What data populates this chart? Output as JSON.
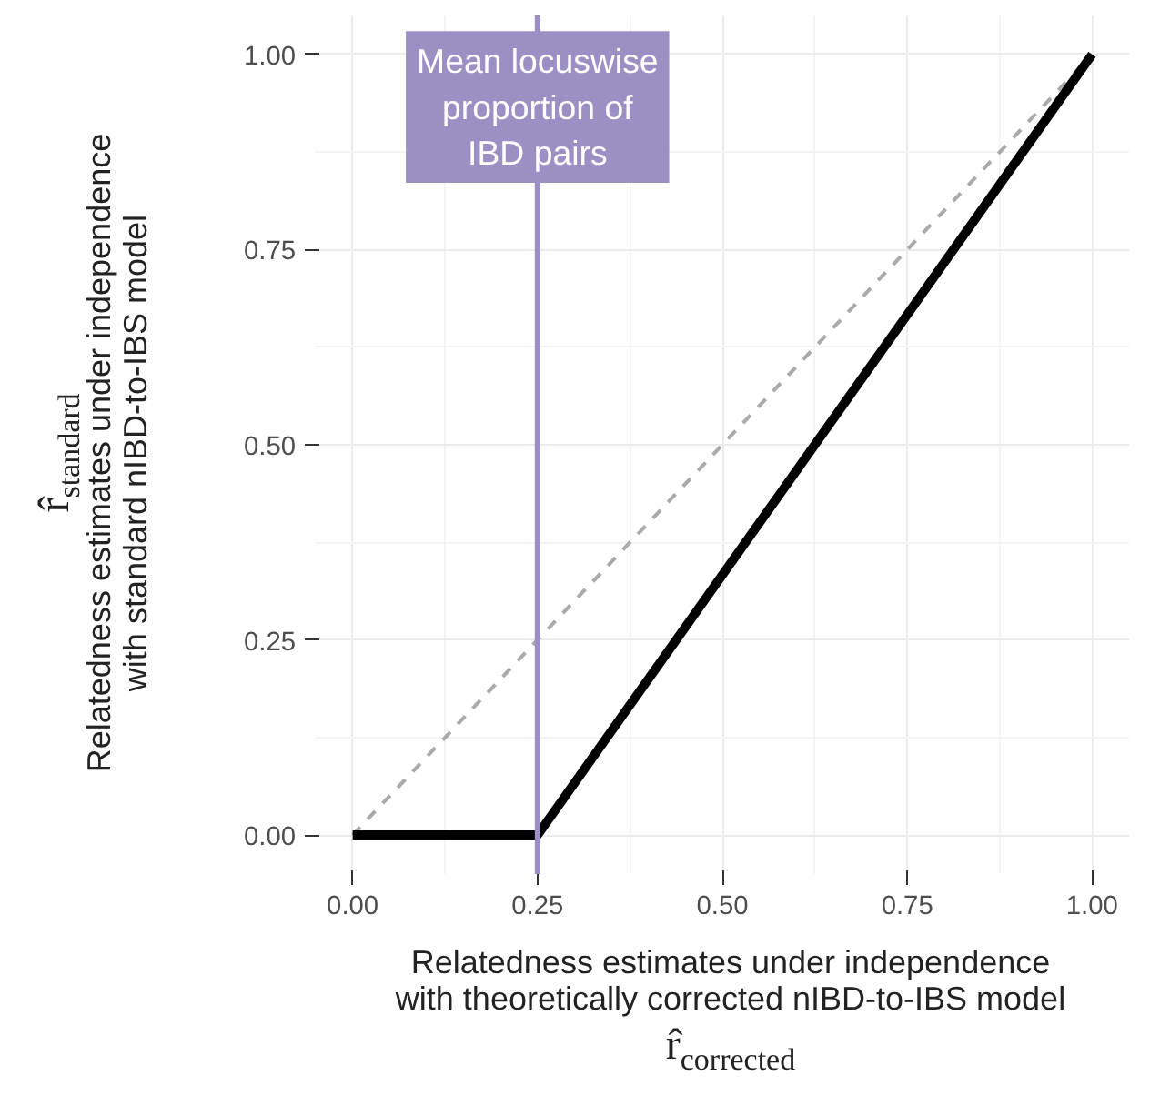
{
  "chart_data": {
    "type": "line",
    "xlabel": "Relatedness estimates under independence\nwith theoretically corrected nIBD-to-IBS model\nr̂$_{corrected}$",
    "ylabel": "Relatedness estimates under independence\nwith standard nIBD-to-IBS model\nr̂$_{standard}$",
    "series": [
      {
        "color": "#000000",
        "x": [
          0,
          0.25,
          1
        ],
        "values": [
          0,
          0,
          1
        ],
        "line_style": "solid"
      },
      {
        "color": "#aaaaaa",
        "x": [
          0,
          1
        ],
        "values": [
          0,
          1
        ],
        "line_style": "dashed"
      }
    ],
    "ref_lines": [
      {
        "axis": "x",
        "value": 0.25,
        "label": "Mean locuswise\nproportion of\nIBD pairs",
        "color": "#9b8fc4"
      }
    ],
    "xlim": [
      -0.05,
      1.05
    ],
    "ylim": [
      -0.05,
      1.05
    ],
    "xticks": [
      {
        "value": 0,
        "label": "0.00"
      },
      {
        "value": 0.25,
        "label": "0.25"
      },
      {
        "value": 0.5,
        "label": "0.50"
      },
      {
        "value": 0.75,
        "label": "0.75"
      },
      {
        "value": 1,
        "label": "1.00"
      }
    ],
    "yticks": [
      {
        "value": 0,
        "label": "0.00"
      },
      {
        "value": 0.25,
        "label": "0.25"
      },
      {
        "value": 0.5,
        "label": "0.50"
      },
      {
        "value": 0.75,
        "label": "0.75"
      },
      {
        "value": 1,
        "label": "1.00"
      }
    ],
    "grid": true
  }
}
